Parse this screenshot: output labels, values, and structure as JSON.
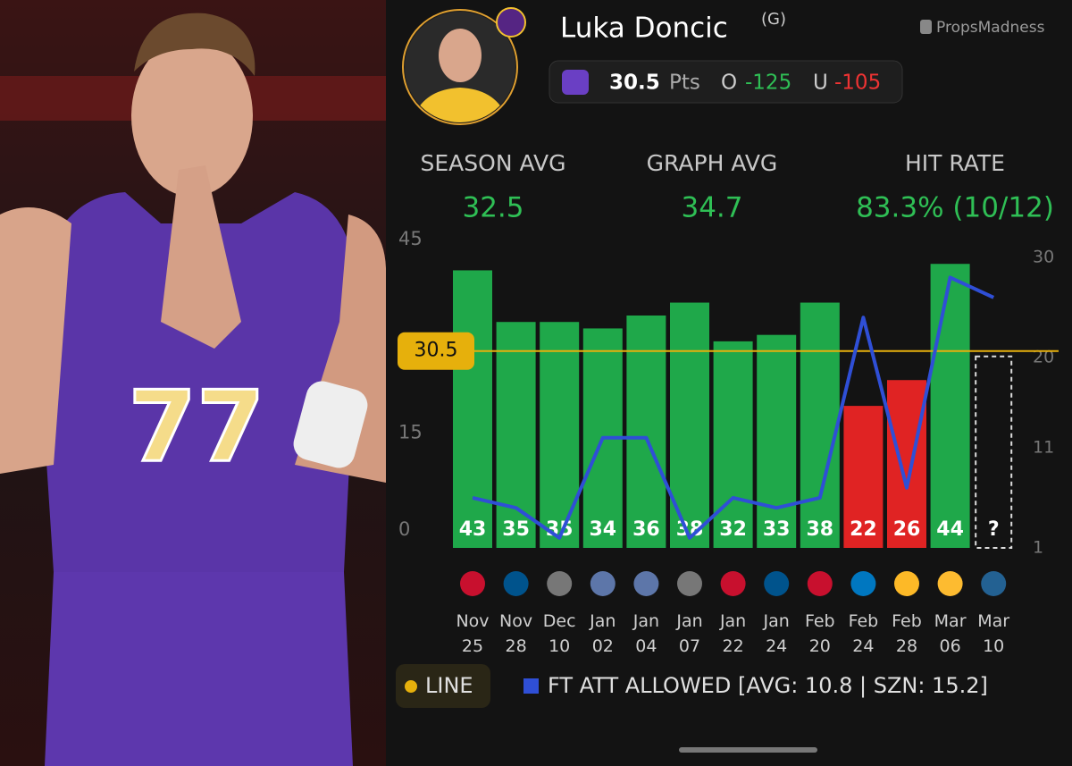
{
  "photo": {
    "jersey_number": "77"
  },
  "header": {
    "name": "Luka Doncic",
    "position": "(G)",
    "brand": "PropsMadness",
    "line": "30.5",
    "unit": "Pts",
    "over_label": "O",
    "over_odds": "-125",
    "under_label": "U",
    "under_odds": "-105"
  },
  "stats": [
    {
      "label": "SEASON AVG",
      "value": "32.5"
    },
    {
      "label": "GRAPH AVG",
      "value": "34.7"
    },
    {
      "label": "HIT RATE",
      "value": "83.3% (10/12)"
    }
  ],
  "chart_data": {
    "type": "bar",
    "categories": [
      "Nov 25",
      "Nov 28",
      "Dec 10",
      "Jan 02",
      "Jan 04",
      "Jan 07",
      "Jan 22",
      "Jan 24",
      "Feb 20",
      "Feb 24",
      "Feb 28",
      "Mar 06",
      "Mar 10"
    ],
    "series": [
      {
        "values": [
          43,
          35,
          35,
          34,
          36,
          38,
          32,
          33,
          38,
          22,
          26,
          44,
          null
        ],
        "value_labels": [
          "43",
          "35",
          "35",
          "34",
          "36",
          "38",
          "32",
          "33",
          "38",
          "22",
          "26",
          "44",
          "?"
        ],
        "colors": [
          "#1fa84a",
          "#1fa84a",
          "#1fa84a",
          "#1fa84a",
          "#1fa84a",
          "#1fa84a",
          "#1fa84a",
          "#1fa84a",
          "#1fa84a",
          "#e02323",
          "#e02323",
          "#1fa84a",
          "#1fa84a"
        ]
      },
      {
        "name": "FT ATT ALLOWED [AVG: 10.8 | SZN: 15.2]",
        "type": "line",
        "axis": "y2",
        "color": "#2f4fd6",
        "values": [
          6,
          5,
          2,
          12,
          12,
          2,
          6,
          5,
          6,
          24,
          7,
          28,
          26
        ]
      }
    ],
    "reference_line": {
      "name": "LINE",
      "value": 30.5,
      "color": "#e6b00c"
    },
    "ylim": [
      0,
      45
    ],
    "yticks": [
      0,
      15,
      45
    ],
    "y2lim": [
      1,
      30
    ],
    "y2ticks": [
      1,
      11,
      20,
      30
    ]
  }
}
